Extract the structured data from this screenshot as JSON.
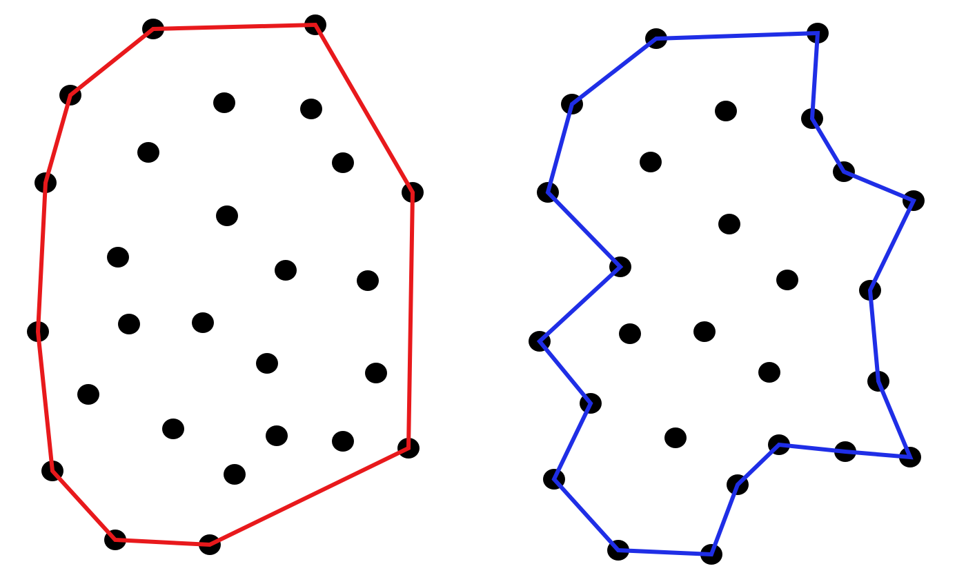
{
  "colors": {
    "background": "#ffffff",
    "point": "#000000",
    "convex_hull": "#e8191c",
    "concave_hull": "#1f2ee6"
  },
  "panels": [
    {
      "id": "convex",
      "hull_type": "convex",
      "hull_color_key": "convex_hull",
      "points": [
        [
          222,
          42
        ],
        [
          457,
          36
        ],
        [
          102,
          138
        ],
        [
          325,
          149
        ],
        [
          451,
          158
        ],
        [
          215,
          221
        ],
        [
          497,
          236
        ],
        [
          66,
          265
        ],
        [
          598,
          279
        ],
        [
          329,
          313
        ],
        [
          171,
          373
        ],
        [
          414,
          392
        ],
        [
          533,
          407
        ],
        [
          187,
          470
        ],
        [
          294,
          468
        ],
        [
          55,
          481
        ],
        [
          387,
          527
        ],
        [
          545,
          541
        ],
        [
          128,
          572
        ],
        [
          251,
          622
        ],
        [
          401,
          632
        ],
        [
          497,
          640
        ],
        [
          592,
          650
        ],
        [
          76,
          683
        ],
        [
          340,
          688
        ],
        [
          167,
          783
        ],
        [
          304,
          790
        ]
      ],
      "hull": [
        [
          222,
          42
        ],
        [
          457,
          36
        ],
        [
          598,
          279
        ],
        [
          592,
          650
        ],
        [
          304,
          790
        ],
        [
          167,
          783
        ],
        [
          76,
          683
        ],
        [
          55,
          481
        ],
        [
          66,
          265
        ],
        [
          102,
          138
        ]
      ]
    },
    {
      "id": "concave",
      "hull_type": "concave",
      "hull_color_key": "concave_hull",
      "points": [
        [
          951,
          56
        ],
        [
          1185,
          48
        ],
        [
          829,
          151
        ],
        [
          1052,
          161
        ],
        [
          1177,
          172
        ],
        [
          943,
          235
        ],
        [
          1223,
          249
        ],
        [
          794,
          279
        ],
        [
          1324,
          291
        ],
        [
          1057,
          325
        ],
        [
          899,
          387
        ],
        [
          1141,
          406
        ],
        [
          1261,
          421
        ],
        [
          913,
          484
        ],
        [
          1021,
          481
        ],
        [
          782,
          495
        ],
        [
          1115,
          540
        ],
        [
          1273,
          553
        ],
        [
          856,
          585
        ],
        [
          979,
          635
        ],
        [
          1129,
          645
        ],
        [
          1225,
          655
        ],
        [
          1319,
          663
        ],
        [
          803,
          695
        ],
        [
          1069,
          703
        ],
        [
          896,
          798
        ],
        [
          1031,
          804
        ]
      ],
      "hull": [
        [
          951,
          56
        ],
        [
          1185,
          48
        ],
        [
          1177,
          172
        ],
        [
          1223,
          249
        ],
        [
          1324,
          291
        ],
        [
          1261,
          421
        ],
        [
          1273,
          553
        ],
        [
          1319,
          663
        ],
        [
          1225,
          655
        ],
        [
          1129,
          645
        ],
        [
          1069,
          703
        ],
        [
          1031,
          804
        ],
        [
          896,
          798
        ],
        [
          803,
          695
        ],
        [
          856,
          585
        ],
        [
          782,
          495
        ],
        [
          899,
          387
        ],
        [
          794,
          279
        ],
        [
          829,
          151
        ]
      ]
    }
  ]
}
